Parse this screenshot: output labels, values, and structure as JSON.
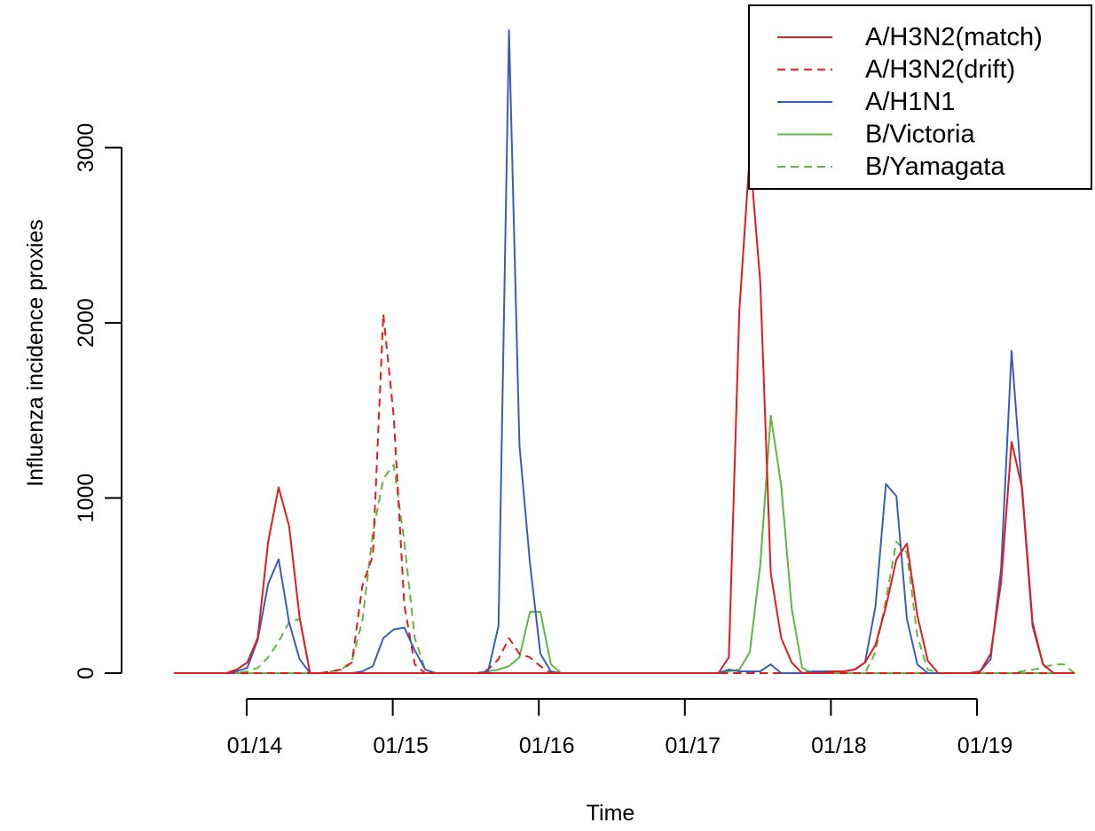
{
  "chart_data": {
    "type": "line",
    "title": "",
    "xlabel": "Time",
    "ylabel": "Influenza incidence proxies",
    "x_ticks": [
      "01/14",
      "01/15",
      "01/16",
      "01/17",
      "01/18",
      "01/19"
    ],
    "y_ticks": [
      0,
      1000,
      2000,
      3000
    ],
    "xlim": [
      0,
      100
    ],
    "ylim": [
      -150,
      3700
    ],
    "grid": false,
    "legend_position": "top-right",
    "series": [
      {
        "name": "A/H3N2(match)",
        "color": "#E41A1C",
        "dash": "solid",
        "points": [
          [
            0,
            0
          ],
          [
            5,
            0
          ],
          [
            6,
            20
          ],
          [
            7,
            60
          ],
          [
            8,
            200
          ],
          [
            9,
            750
          ],
          [
            10,
            1060
          ],
          [
            11,
            840
          ],
          [
            12,
            320
          ],
          [
            13,
            0
          ],
          [
            20,
            0
          ],
          [
            29,
            0
          ],
          [
            40,
            0
          ],
          [
            48,
            0
          ],
          [
            52,
            0
          ],
          [
            53,
            90
          ],
          [
            54,
            2070
          ],
          [
            55,
            2970
          ],
          [
            56,
            2230
          ],
          [
            57,
            570
          ],
          [
            58,
            200
          ],
          [
            59,
            60
          ],
          [
            60,
            0
          ],
          [
            62,
            0
          ],
          [
            63,
            10
          ],
          [
            64,
            10
          ],
          [
            65,
            20
          ],
          [
            66,
            60
          ],
          [
            67,
            160
          ],
          [
            68,
            380
          ],
          [
            69,
            650
          ],
          [
            70,
            740
          ],
          [
            71,
            330
          ],
          [
            72,
            70
          ],
          [
            73,
            0
          ],
          [
            76,
            0
          ],
          [
            77,
            10
          ],
          [
            78,
            110
          ],
          [
            79,
            520
          ],
          [
            80,
            1320
          ],
          [
            81,
            1060
          ],
          [
            82,
            290
          ],
          [
            83,
            50
          ],
          [
            84,
            0
          ],
          [
            86,
            0
          ]
        ]
      },
      {
        "name": "A/H3N2(drift)",
        "color": "#E41A1C",
        "dash": "dashed",
        "points": [
          [
            0,
            0
          ],
          [
            14,
            0
          ],
          [
            16,
            20
          ],
          [
            17,
            60
          ],
          [
            18,
            500
          ],
          [
            19,
            670
          ],
          [
            20,
            2050
          ],
          [
            21,
            1460
          ],
          [
            22,
            390
          ],
          [
            23,
            50
          ],
          [
            24,
            0
          ],
          [
            29,
            0
          ],
          [
            30,
            20
          ],
          [
            31,
            80
          ],
          [
            32,
            200
          ],
          [
            33,
            110
          ],
          [
            34,
            90
          ],
          [
            35,
            40
          ],
          [
            36,
            0
          ],
          [
            86,
            0
          ]
        ]
      },
      {
        "name": "A/H1N1",
        "color": "#3A5DB9",
        "dash": "solid",
        "points": [
          [
            0,
            0
          ],
          [
            5,
            0
          ],
          [
            6,
            10
          ],
          [
            7,
            30
          ],
          [
            8,
            190
          ],
          [
            9,
            510
          ],
          [
            10,
            650
          ],
          [
            11,
            290
          ],
          [
            12,
            80
          ],
          [
            13,
            0
          ],
          [
            14,
            0
          ],
          [
            17,
            0
          ],
          [
            18,
            10
          ],
          [
            19,
            40
          ],
          [
            20,
            200
          ],
          [
            21,
            250
          ],
          [
            22,
            260
          ],
          [
            23,
            130
          ],
          [
            24,
            20
          ],
          [
            25,
            0
          ],
          [
            29,
            0
          ],
          [
            30,
            10
          ],
          [
            31,
            270
          ],
          [
            32,
            3670
          ],
          [
            33,
            1300
          ],
          [
            34,
            630
          ],
          [
            35,
            110
          ],
          [
            36,
            10
          ],
          [
            37,
            0
          ],
          [
            52,
            0
          ],
          [
            53,
            20
          ],
          [
            54,
            10
          ],
          [
            55,
            10
          ],
          [
            56,
            10
          ],
          [
            57,
            50
          ],
          [
            58,
            0
          ],
          [
            59,
            0
          ],
          [
            60,
            0
          ],
          [
            61,
            10
          ],
          [
            62,
            10
          ],
          [
            63,
            10
          ],
          [
            64,
            10
          ],
          [
            65,
            20
          ],
          [
            66,
            60
          ],
          [
            67,
            380
          ],
          [
            68,
            1080
          ],
          [
            69,
            1010
          ],
          [
            70,
            310
          ],
          [
            71,
            50
          ],
          [
            72,
            0
          ],
          [
            73,
            0
          ],
          [
            76,
            0
          ],
          [
            77,
            10
          ],
          [
            78,
            80
          ],
          [
            79,
            600
          ],
          [
            80,
            1840
          ],
          [
            81,
            1040
          ],
          [
            82,
            270
          ],
          [
            83,
            50
          ],
          [
            84,
            0
          ],
          [
            86,
            0
          ]
        ]
      },
      {
        "name": "B/Victoria",
        "color": "#5CB940",
        "dash": "solid",
        "points": [
          [
            0,
            0
          ],
          [
            29,
            0
          ],
          [
            30,
            10
          ],
          [
            31,
            20
          ],
          [
            32,
            40
          ],
          [
            33,
            90
          ],
          [
            34,
            350
          ],
          [
            35,
            350
          ],
          [
            36,
            50
          ],
          [
            37,
            0
          ],
          [
            52,
            0
          ],
          [
            53,
            10
          ],
          [
            54,
            20
          ],
          [
            55,
            120
          ],
          [
            56,
            620
          ],
          [
            57,
            1470
          ],
          [
            58,
            1070
          ],
          [
            59,
            370
          ],
          [
            60,
            30
          ],
          [
            61,
            0
          ],
          [
            86,
            0
          ]
        ]
      },
      {
        "name": "B/Yamagata",
        "color": "#5CB940",
        "dash": "dashed",
        "points": [
          [
            0,
            0
          ],
          [
            6,
            0
          ],
          [
            7,
            10
          ],
          [
            8,
            30
          ],
          [
            9,
            90
          ],
          [
            10,
            180
          ],
          [
            11,
            290
          ],
          [
            12,
            310
          ],
          [
            13,
            0
          ],
          [
            14,
            0
          ],
          [
            15,
            10
          ],
          [
            16,
            20
          ],
          [
            17,
            70
          ],
          [
            18,
            300
          ],
          [
            19,
            800
          ],
          [
            20,
            1110
          ],
          [
            21,
            1190
          ],
          [
            22,
            750
          ],
          [
            23,
            200
          ],
          [
            24,
            20
          ],
          [
            25,
            0
          ],
          [
            66,
            0
          ],
          [
            67,
            120
          ],
          [
            68,
            420
          ],
          [
            69,
            750
          ],
          [
            70,
            690
          ],
          [
            71,
            210
          ],
          [
            72,
            20
          ],
          [
            73,
            0
          ],
          [
            80,
            0
          ],
          [
            81,
            10
          ],
          [
            82,
            20
          ],
          [
            83,
            30
          ],
          [
            84,
            50
          ],
          [
            85,
            50
          ],
          [
            86,
            0
          ]
        ]
      }
    ]
  }
}
